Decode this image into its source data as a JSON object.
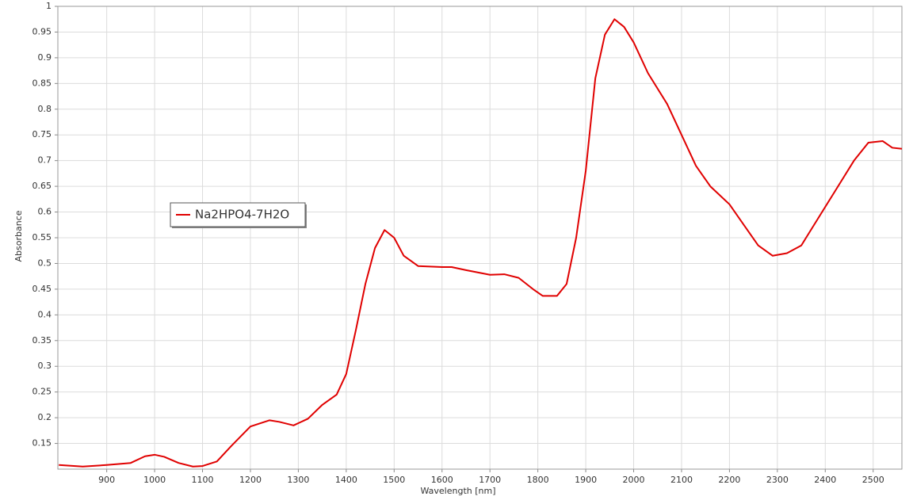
{
  "chart_data": {
    "type": "line",
    "xlabel": "Wavelength [nm]",
    "ylabel": "Absorbance",
    "x": [
      800,
      850,
      900,
      950,
      980,
      1000,
      1020,
      1050,
      1080,
      1100,
      1130,
      1160,
      1200,
      1240,
      1260,
      1290,
      1320,
      1350,
      1380,
      1400,
      1420,
      1440,
      1460,
      1480,
      1500,
      1520,
      1550,
      1600,
      1620,
      1650,
      1700,
      1730,
      1760,
      1790,
      1810,
      1840,
      1860,
      1880,
      1900,
      1920,
      1940,
      1960,
      1980,
      2000,
      2030,
      2070,
      2100,
      2130,
      2160,
      2200,
      2230,
      2260,
      2290,
      2320,
      2350,
      2380,
      2420,
      2460,
      2490,
      2520,
      2540,
      2560
    ],
    "series": [
      {
        "name": "Na2HPO4-7H2O",
        "color": "#e00000",
        "values": [
          0.108,
          0.105,
          0.108,
          0.112,
          0.125,
          0.128,
          0.124,
          0.112,
          0.105,
          0.106,
          0.115,
          0.145,
          0.183,
          0.195,
          0.192,
          0.185,
          0.198,
          0.225,
          0.245,
          0.285,
          0.37,
          0.46,
          0.53,
          0.565,
          0.55,
          0.515,
          0.495,
          0.493,
          0.493,
          0.487,
          0.478,
          0.479,
          0.472,
          0.45,
          0.437,
          0.437,
          0.46,
          0.55,
          0.68,
          0.86,
          0.945,
          0.975,
          0.96,
          0.93,
          0.87,
          0.81,
          0.75,
          0.69,
          0.65,
          0.615,
          0.575,
          0.535,
          0.515,
          0.52,
          0.535,
          0.58,
          0.64,
          0.7,
          0.735,
          0.738,
          0.725,
          0.723
        ]
      }
    ],
    "xlim": [
      798,
      2560
    ],
    "ylim": [
      0.1,
      1
    ],
    "xticks": [
      900,
      1000,
      1100,
      1200,
      1300,
      1400,
      1500,
      1600,
      1700,
      1800,
      1900,
      2000,
      2100,
      2200,
      2300,
      2400,
      2500
    ],
    "yticks": [
      0.15,
      0.2,
      0.25,
      0.3,
      0.35,
      0.4,
      0.45,
      0.5,
      0.55,
      0.6,
      0.65,
      0.7,
      0.75,
      0.8,
      0.85,
      0.9,
      0.95,
      1
    ],
    "grid": true,
    "legend": "left"
  }
}
